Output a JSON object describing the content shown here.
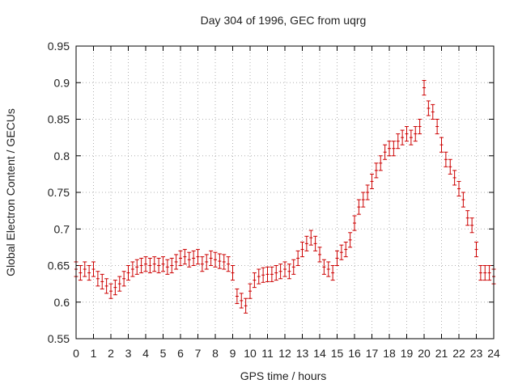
{
  "chart_data": {
    "type": "scatter",
    "title": "Day 304 of 1996, GEC from uqrg",
    "xlabel": "GPS time / hours",
    "ylabel": "Global Electron Content / GECUs",
    "xlim": [
      0,
      24
    ],
    "ylim": [
      0.55,
      0.95
    ],
    "x_ticks": [
      0,
      1,
      2,
      3,
      4,
      5,
      6,
      7,
      8,
      9,
      10,
      11,
      12,
      13,
      14,
      15,
      16,
      17,
      18,
      19,
      20,
      21,
      22,
      23,
      24
    ],
    "x_tick_labels": [
      "0",
      "1",
      "2",
      "3",
      "4",
      "5",
      "6",
      "7",
      "8",
      "9",
      "10",
      "11",
      "12",
      "13",
      "14",
      "15",
      "16",
      "17",
      "18",
      "19",
      "20",
      "21",
      "22",
      "23",
      "24"
    ],
    "y_ticks": [
      0.55,
      0.6,
      0.65,
      0.7,
      0.75,
      0.8,
      0.85,
      0.9,
      0.95
    ],
    "y_tick_labels": [
      "0.55",
      "0.6",
      "0.65",
      "0.7",
      "0.75",
      "0.8",
      "0.85",
      "0.9",
      "0.95"
    ],
    "grid": true,
    "color": "#cc0000",
    "error": 0.01,
    "x": [
      0,
      0.25,
      0.5,
      0.75,
      1,
      1.25,
      1.5,
      1.75,
      2,
      2.25,
      2.5,
      2.75,
      3,
      3.25,
      3.5,
      3.75,
      4,
      4.25,
      4.5,
      4.75,
      5,
      5.25,
      5.5,
      5.75,
      6,
      6.25,
      6.5,
      6.75,
      7,
      7.25,
      7.5,
      7.75,
      8,
      8.25,
      8.5,
      8.75,
      9,
      9.25,
      9.5,
      9.75,
      10,
      10.25,
      10.5,
      10.75,
      11,
      11.25,
      11.5,
      11.75,
      12,
      12.25,
      12.5,
      12.75,
      13,
      13.25,
      13.5,
      13.75,
      14,
      14.25,
      14.5,
      14.75,
      15,
      15.25,
      15.5,
      15.75,
      16,
      16.25,
      16.5,
      16.75,
      17,
      17.25,
      17.5,
      17.75,
      18,
      18.25,
      18.5,
      18.75,
      19,
      19.25,
      19.5,
      19.75,
      20,
      20.25,
      20.5,
      20.75,
      21,
      21.25,
      21.5,
      21.75,
      22,
      22.25,
      22.5,
      22.75,
      23,
      23.25,
      23.5,
      23.75,
      24
    ],
    "y": [
      0.645,
      0.64,
      0.645,
      0.64,
      0.645,
      0.632,
      0.628,
      0.622,
      0.615,
      0.62,
      0.625,
      0.632,
      0.64,
      0.645,
      0.648,
      0.65,
      0.652,
      0.65,
      0.652,
      0.65,
      0.652,
      0.648,
      0.65,
      0.655,
      0.66,
      0.662,
      0.658,
      0.66,
      0.662,
      0.652,
      0.655,
      0.66,
      0.658,
      0.656,
      0.655,
      0.652,
      0.64,
      0.608,
      0.602,
      0.595,
      0.615,
      0.63,
      0.635,
      0.637,
      0.638,
      0.638,
      0.64,
      0.642,
      0.645,
      0.642,
      0.648,
      0.66,
      0.672,
      0.68,
      0.688,
      0.68,
      0.665,
      0.648,
      0.645,
      0.64,
      0.66,
      0.668,
      0.672,
      0.685,
      0.708,
      0.73,
      0.74,
      0.75,
      0.765,
      0.78,
      0.79,
      0.805,
      0.81,
      0.81,
      0.82,
      0.825,
      0.83,
      0.825,
      0.83,
      0.84,
      0.893,
      0.865,
      0.86,
      0.84,
      0.815,
      0.795,
      0.785,
      0.77,
      0.755,
      0.74,
      0.715,
      0.705,
      0.672,
      0.64,
      0.64,
      0.64,
      0.635
    ]
  }
}
